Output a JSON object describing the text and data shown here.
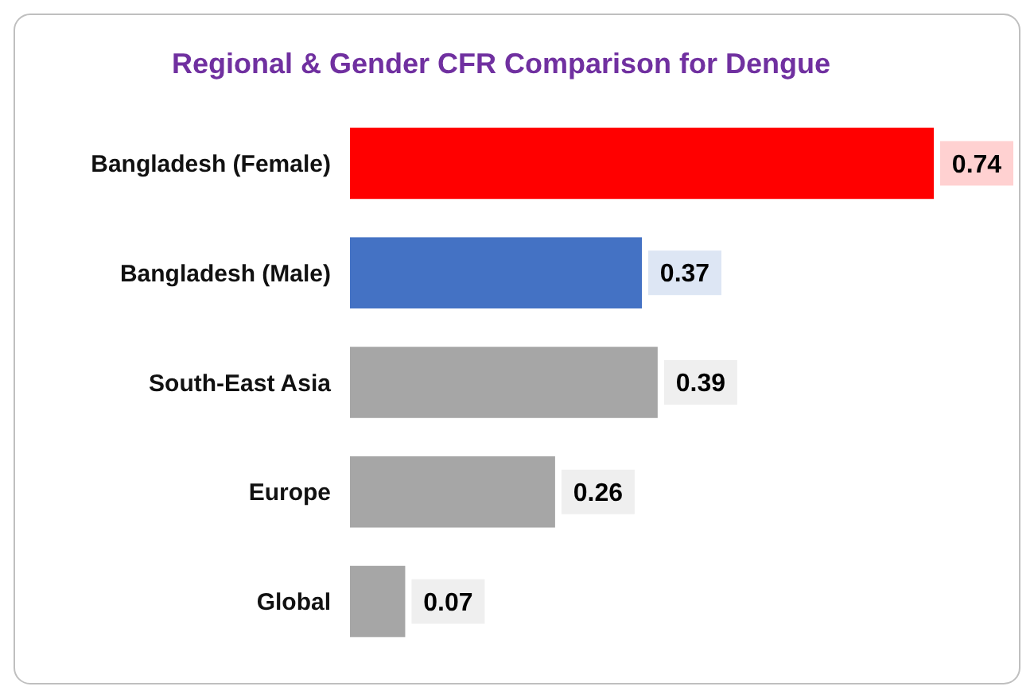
{
  "chart_data": {
    "type": "bar",
    "orientation": "horizontal",
    "title": "Regional & Gender CFR Comparison for Dengue",
    "categories": [
      "Bangladesh (Female)",
      "Bangladesh (Male)",
      "South-East Asia",
      "Europe",
      "Global"
    ],
    "values": [
      0.74,
      0.37,
      0.39,
      0.26,
      0.07
    ],
    "colors": [
      "#ff0000",
      "#4472c4",
      "#a6a6a6",
      "#a6a6a6",
      "#a6a6a6"
    ],
    "xlim": [
      0,
      0.74
    ],
    "data_labels": true
  }
}
